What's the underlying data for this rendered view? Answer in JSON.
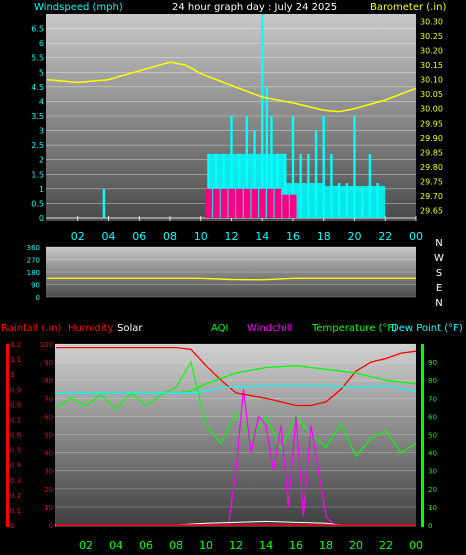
{
  "header": {
    "left_title": "Windspeed (mph)",
    "center_title": "24 hour graph day : July 24 2025",
    "right_title": "Barometer (.in)"
  },
  "panel_bottom_labels": {
    "rainfall": "Rainfall (.in)",
    "humidity": "Humidity",
    "solar": "Solar",
    "aqi": "AQI",
    "windchill": "Windchill",
    "temperature": "Temperature (°F)",
    "dewpoint": "Dew Point (°F)"
  },
  "colors": {
    "windspeed_axis": "#00ffff",
    "barometer": "#ffff00",
    "gust_bars": "#00ffff",
    "wind_bars": "#ff0080",
    "direction": "#ffff00",
    "rainfall": "#ff0000",
    "humidity": "#ff0000",
    "solar": "#ffffff",
    "aqi": "#00ff00",
    "windchill": "#ff00ff",
    "temperature": "#00ff00",
    "dewpoint": "#00ffff"
  },
  "chart_data": [
    {
      "type": "line",
      "title": "24 hour graph day : July 24 2025",
      "xlabel": "",
      "x_ticks": [
        "02",
        "04",
        "06",
        "08",
        "10",
        "12",
        "14",
        "16",
        "18",
        "20",
        "22",
        "00"
      ],
      "y_left": {
        "label": "Windspeed (mph)",
        "ticks": [
          0,
          0.5,
          1,
          1.5,
          2,
          2.5,
          3,
          3.5,
          4,
          4.5,
          5,
          5.5,
          6,
          6.5
        ],
        "ylim": [
          0,
          7
        ]
      },
      "y_right": {
        "label": "Barometer (.in)",
        "ticks": [
          29.65,
          29.7,
          29.75,
          29.8,
          29.85,
          29.9,
          29.95,
          30,
          30.05,
          30.1,
          30.15,
          30.2,
          30.25,
          30.3
        ],
        "ylim": [
          29.625,
          30.325
        ]
      },
      "series": [
        {
          "name": "Barometer (.in)",
          "axis": "right",
          "x": [
            0,
            2,
            4,
            6,
            8,
            9,
            10,
            12,
            14,
            16,
            18,
            19,
            20,
            22,
            24
          ],
          "values": [
            30.1,
            30.09,
            30.1,
            30.13,
            30.16,
            30.15,
            30.12,
            30.08,
            30.04,
            30.02,
            29.995,
            29.99,
            30.0,
            30.03,
            30.07
          ]
        },
        {
          "name": "gust",
          "axis": "left",
          "x": [
            3.7,
            10.5,
            11.0,
            11.5,
            12.0,
            12.5,
            13.0,
            13.5,
            14.0,
            14.3,
            14.6,
            15.0,
            15.5,
            16.0,
            16.5,
            17.0,
            17.5,
            18.0,
            18.5,
            19.0,
            19.5,
            20.0,
            20.5,
            21.0,
            21.5
          ],
          "values": [
            1.0,
            2.2,
            2.2,
            2.2,
            3.5,
            2.2,
            3.5,
            3.0,
            7.0,
            4.5,
            3.5,
            2.2,
            2.2,
            3.5,
            2.2,
            2.2,
            3.0,
            3.5,
            2.2,
            1.2,
            1.2,
            3.5,
            1.0,
            2.2,
            1.2
          ]
        },
        {
          "name": "wind",
          "axis": "left",
          "x": [
            10.5,
            11.0,
            11.5,
            12.0,
            12.5,
            13.0,
            13.5,
            14.0,
            14.5,
            15.0,
            15.5,
            16.0
          ],
          "values": [
            1.0,
            1.0,
            1.0,
            1.0,
            1.0,
            1.0,
            1.0,
            1.0,
            1.0,
            1.0,
            0.8,
            0.8
          ]
        }
      ]
    },
    {
      "type": "line",
      "title": "",
      "x_ticks": [
        "02",
        "04",
        "06",
        "08",
        "10",
        "12",
        "14",
        "16",
        "18",
        "20",
        "22",
        "00"
      ],
      "y_left": {
        "label": "",
        "ticks": [
          0,
          90,
          180,
          270,
          360
        ],
        "ylim": [
          0,
          360
        ]
      },
      "y_right": {
        "label": "",
        "ticks": [
          "N",
          "W",
          "S",
          "E",
          "N"
        ]
      },
      "series": [
        {
          "name": "direction",
          "x": [
            0,
            10,
            12,
            14,
            16,
            24
          ],
          "values": [
            135,
            135,
            126,
            124,
            135,
            135
          ]
        }
      ]
    },
    {
      "type": "line",
      "title": "",
      "x_ticks": [
        "02",
        "04",
        "06",
        "08",
        "10",
        "12",
        "14",
        "16",
        "18",
        "20",
        "22",
        "00"
      ],
      "y_rain": {
        "label": "Rainfall (.in)",
        "ticks": [
          0,
          0.1,
          0.2,
          0.3,
          0.4,
          0.5,
          0.6,
          0.7,
          0.8,
          0.9,
          1,
          1.1,
          1.2
        ],
        "ylim": [
          0,
          1.2
        ]
      },
      "y_left": {
        "label": "Humidity",
        "ticks": [
          0,
          10,
          20,
          30,
          40,
          50,
          60,
          70,
          80,
          90,
          100
        ],
        "ylim": [
          0,
          100
        ]
      },
      "y_right": {
        "label": "Temperature (°F)",
        "ticks": [
          0,
          10,
          20,
          30,
          40,
          50,
          60,
          70,
          80,
          90
        ],
        "ylim": [
          0,
          100
        ]
      },
      "series": [
        {
          "name": "Humidity",
          "x": [
            0,
            8,
            9,
            10,
            11,
            12,
            14,
            16,
            17,
            18,
            19,
            20,
            21,
            22,
            23,
            24
          ],
          "values": [
            98,
            98,
            97,
            88,
            80,
            73,
            70,
            66,
            66,
            68,
            75,
            85,
            90,
            92,
            95,
            96
          ]
        },
        {
          "name": "Temperature (°F)",
          "x": [
            0,
            8,
            9,
            10,
            11,
            12,
            14,
            16,
            18,
            20,
            22,
            24
          ],
          "values": [
            73,
            73,
            74,
            78,
            81,
            84,
            87,
            88,
            86,
            84,
            80,
            78
          ]
        },
        {
          "name": "Dew Point (°F)",
          "x": [
            0,
            8,
            9,
            10,
            11,
            12,
            14,
            16,
            18,
            20,
            22,
            24
          ],
          "values": [
            73,
            73,
            73,
            74,
            76,
            76,
            77,
            77,
            77,
            76,
            77,
            74
          ]
        },
        {
          "name": "AQI",
          "x": [
            0,
            1,
            2,
            3,
            4,
            5,
            6,
            7,
            8,
            9,
            10,
            11,
            12,
            13,
            14,
            15,
            16,
            17,
            18,
            19,
            20,
            21,
            22,
            23,
            24
          ],
          "values": [
            65,
            70,
            66,
            72,
            64,
            73,
            66,
            72,
            76,
            90,
            55,
            45,
            62,
            48,
            60,
            42,
            60,
            50,
            43,
            56,
            38,
            48,
            52,
            40,
            45
          ]
        },
        {
          "name": "Windchill",
          "x": [
            0,
            11.5,
            12,
            12.5,
            13,
            13.5,
            14,
            14.5,
            15,
            15.5,
            16,
            16.5,
            17,
            17.5,
            18,
            18.5,
            19,
            24
          ],
          "values": [
            0,
            0,
            30,
            75,
            40,
            60,
            55,
            30,
            55,
            10,
            60,
            5,
            55,
            30,
            5,
            0,
            0,
            0
          ]
        },
        {
          "name": "Solar",
          "x": [
            0,
            8,
            9,
            10,
            14,
            18,
            19,
            24
          ],
          "values": [
            0,
            0,
            0.5,
            1,
            2,
            1,
            0,
            0
          ]
        },
        {
          "name": "Rainfall (.in)",
          "x": [
            0,
            24
          ],
          "values": [
            0,
            0
          ]
        }
      ]
    }
  ]
}
